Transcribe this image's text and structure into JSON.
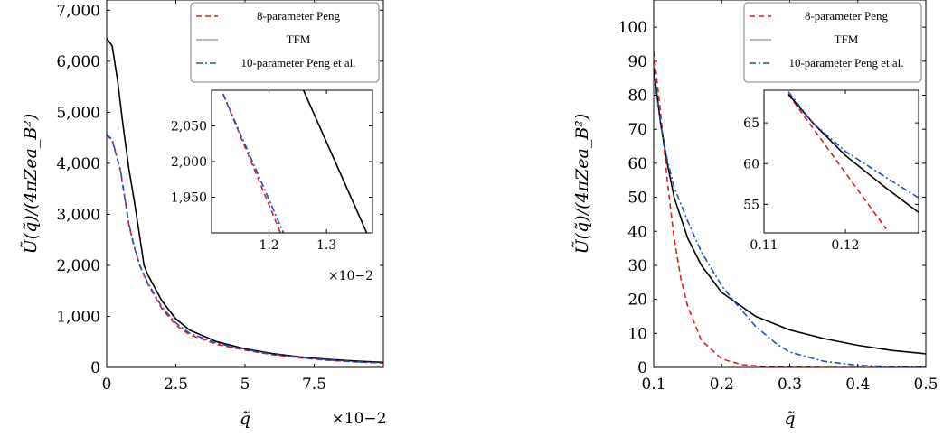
{
  "legend": {
    "entries": [
      {
        "label": "8-parameter Peng",
        "color": "#e41a1c",
        "dash": "6,4"
      },
      {
        "label": "TFM",
        "color": "#000000",
        "dash": ""
      },
      {
        "label": "10-parameter Peng et al.",
        "color": "#1f4fbf",
        "dash": "7,3,2,3"
      }
    ],
    "legend_line_color_tfm": "#a0a0a0"
  },
  "chart_data": [
    {
      "type": "line",
      "xlabel": "q̃",
      "ylabel": "Ũ(q̃)/(4πZea_B²)",
      "x_multiplier": "×10−2",
      "xlim": [
        0,
        10
      ],
      "ylim": [
        0,
        7200
      ],
      "x_ticks": [
        0,
        2.5,
        5,
        7.5
      ],
      "x_tick_labels": [
        "0",
        "2.5",
        "5",
        "7.5"
      ],
      "y_ticks": [
        0,
        1000,
        2000,
        3000,
        4000,
        5000,
        6000,
        7000
      ],
      "y_tick_labels": [
        "0",
        "1,000",
        "2,000",
        "3,000",
        "4,000",
        "5,000",
        "6,000",
        "7,000"
      ],
      "legend_position": "top-right",
      "series": [
        {
          "name": "8-parameter Peng",
          "color": "#e41a1c",
          "x": [
            0,
            0.2,
            0.5,
            0.8,
            1.0,
            1.2,
            1.5,
            2.0,
            2.5,
            3.0,
            4.0,
            5.0,
            6.0,
            7.0,
            8.0,
            9.0,
            10.0
          ],
          "y": [
            4560,
            4450,
            3850,
            2800,
            2350,
            1990,
            1620,
            1150,
            830,
            640,
            450,
            340,
            250,
            185,
            140,
            110,
            85
          ]
        },
        {
          "name": "TFM",
          "color": "#000000",
          "x": [
            0,
            0.2,
            0.4,
            0.6,
            0.8,
            1.0,
            1.2,
            1.35,
            1.5,
            2.0,
            2.5,
            3.0,
            4.0,
            5.0,
            6.0,
            7.0,
            8.0,
            9.0,
            10.0
          ],
          "y": [
            6450,
            6300,
            5600,
            4700,
            3900,
            3250,
            2550,
            2000,
            1800,
            1300,
            950,
            730,
            500,
            365,
            270,
            205,
            160,
            125,
            100
          ]
        },
        {
          "name": "10-parameter Peng et al.",
          "color": "#1f4fbf",
          "x": [
            0,
            0.2,
            0.5,
            0.8,
            1.0,
            1.2,
            1.5,
            2.0,
            2.5,
            3.0,
            4.0,
            5.0,
            6.0,
            7.0,
            8.0,
            9.0,
            10.0
          ],
          "y": [
            4570,
            4460,
            3870,
            2820,
            2360,
            1995,
            1640,
            1180,
            870,
            670,
            470,
            350,
            260,
            195,
            145,
            112,
            88
          ]
        }
      ],
      "inset": {
        "xlim": [
          1.1,
          1.38
        ],
        "ylim": [
          1900,
          2100
        ],
        "x_ticks": [
          1.2,
          1.3
        ],
        "x_tick_labels": [
          "1.2",
          "1.3"
        ],
        "y_ticks": [
          1950,
          2000,
          2050
        ],
        "y_tick_labels": [
          "1,950",
          "2,000",
          "2,050"
        ],
        "x_multiplier": "×10−2",
        "series": [
          {
            "name": "8-parameter Peng",
            "x": [
              1.12,
              1.22
            ],
            "y": [
              2095,
              1900
            ]
          },
          {
            "name": "TFM",
            "x": [
              1.26,
              1.37
            ],
            "y": [
              2100,
              1900
            ]
          },
          {
            "name": "10-parameter Peng et al.",
            "x": [
              1.12,
              1.225
            ],
            "y": [
              2095,
              1900
            ]
          }
        ]
      }
    },
    {
      "type": "line",
      "xlabel": "q̃",
      "ylabel": "Ũ(q̃)/(4πZea_B²)",
      "xlim": [
        0.1,
        0.5
      ],
      "ylim": [
        0,
        108
      ],
      "x_ticks": [
        0.1,
        0.2,
        0.3,
        0.4,
        0.5
      ],
      "x_tick_labels": [
        "0.1",
        "0.2",
        "0.3",
        "0.4",
        "0.5"
      ],
      "y_ticks": [
        0,
        10,
        20,
        30,
        40,
        50,
        60,
        70,
        80,
        90,
        100
      ],
      "y_tick_labels": [
        "0",
        "10",
        "20",
        "30",
        "40",
        "50",
        "60",
        "70",
        "80",
        "90",
        "100"
      ],
      "legend_position": "top-right",
      "series": [
        {
          "name": "8-parameter Peng",
          "color": "#e41a1c",
          "x": [
            0.1,
            0.11,
            0.12,
            0.13,
            0.14,
            0.15,
            0.17,
            0.2,
            0.23,
            0.26,
            0.3,
            0.35,
            0.4,
            0.5
          ],
          "y": [
            93,
            75,
            55,
            38,
            26,
            18,
            8,
            2.5,
            0.8,
            0.3,
            0.1,
            0,
            0,
            0
          ]
        },
        {
          "name": "TFM",
          "color": "#000000",
          "x": [
            0.1,
            0.11,
            0.12,
            0.13,
            0.15,
            0.17,
            0.2,
            0.25,
            0.3,
            0.35,
            0.4,
            0.45,
            0.5
          ],
          "y": [
            88,
            72,
            60,
            50,
            38,
            30,
            22,
            15,
            11,
            8.5,
            6.5,
            5,
            4
          ]
        },
        {
          "name": "10-parameter Peng et al.",
          "color": "#1f4fbf",
          "x": [
            0.1,
            0.11,
            0.12,
            0.13,
            0.15,
            0.17,
            0.2,
            0.22,
            0.25,
            0.28,
            0.3,
            0.35,
            0.4,
            0.45,
            0.5
          ],
          "y": [
            86,
            72,
            61,
            53,
            43,
            34,
            24,
            19,
            12,
            7,
            4.5,
            1.8,
            0.6,
            0.2,
            0.1
          ]
        }
      ],
      "inset": {
        "xlim": [
          0.11,
          0.129
        ],
        "ylim": [
          51.5,
          69
        ],
        "x_ticks": [
          0.11,
          0.12
        ],
        "x_tick_labels": [
          "0.11",
          "0.12"
        ],
        "y_ticks": [
          55,
          60,
          65
        ],
        "y_tick_labels": [
          "55",
          "60",
          "65"
        ],
        "series": [
          {
            "name": "8-parameter Peng",
            "x": [
              0.113,
              0.117,
              0.121,
              0.125
            ],
            "y": [
              68.5,
              63,
              57.5,
              52
            ]
          },
          {
            "name": "TFM",
            "x": [
              0.113,
              0.116,
              0.12,
              0.125,
              0.129
            ],
            "y": [
              68.5,
              65,
              61,
              57,
              54
            ]
          },
          {
            "name": "10-parameter Peng et al.",
            "x": [
              0.113,
              0.116,
              0.12,
              0.125,
              0.129
            ],
            "y": [
              68.8,
              65,
              61.5,
              58.3,
              55.8
            ]
          }
        ]
      }
    }
  ]
}
